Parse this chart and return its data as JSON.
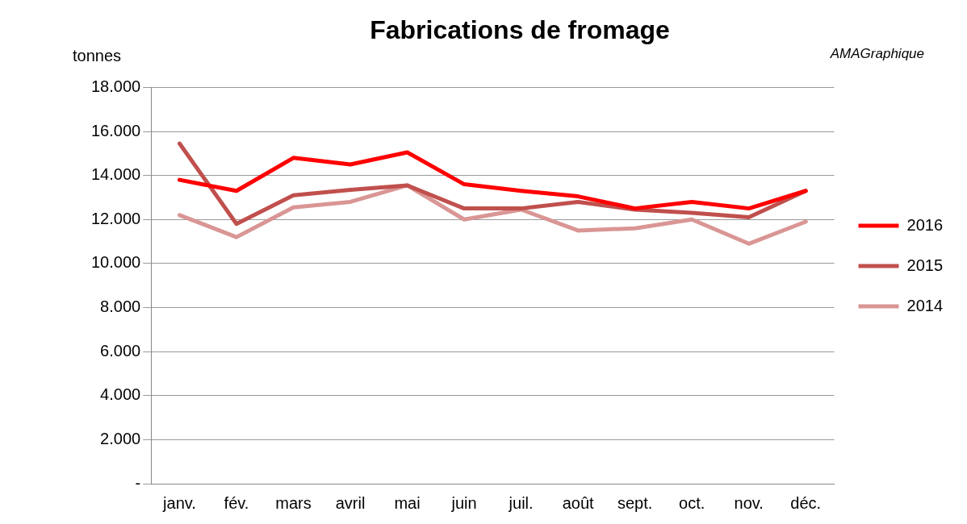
{
  "chart_data": {
    "type": "line",
    "title": "Fabrications de fromage",
    "ylabel": "tonnes",
    "annotations": [
      "AMAGraphique"
    ],
    "categories": [
      "janv.",
      "fév.",
      "mars",
      "avril",
      "mai",
      "juin",
      "juil.",
      "août",
      "sept.",
      "oct.",
      "nov.",
      "déc."
    ],
    "series": [
      {
        "name": "2016",
        "color": "#ff0000",
        "values": [
          13800,
          13300,
          14800,
          14500,
          15050,
          13600,
          13300,
          13050,
          12500,
          12800,
          12500,
          13300
        ]
      },
      {
        "name": "2015",
        "color": "#c0504d",
        "values": [
          15450,
          11800,
          13100,
          13350,
          13550,
          12500,
          12500,
          12800,
          12450,
          12300,
          12100,
          13300
        ]
      },
      {
        "name": "2014",
        "color": "#d99694",
        "values": [
          12200,
          11200,
          12550,
          12800,
          13550,
          12000,
          12450,
          11500,
          11600,
          12000,
          10900,
          11900
        ]
      }
    ],
    "ylim": [
      0,
      18000
    ],
    "yticks": [
      {
        "value": 0,
        "label": "-"
      },
      {
        "value": 2000,
        "label": "2.000"
      },
      {
        "value": 4000,
        "label": "4.000"
      },
      {
        "value": 6000,
        "label": "6.000"
      },
      {
        "value": 8000,
        "label": "8.000"
      },
      {
        "value": 10000,
        "label": "10.000"
      },
      {
        "value": 12000,
        "label": "12.000"
      },
      {
        "value": 14000,
        "label": "14.000"
      },
      {
        "value": 16000,
        "label": "16.000"
      },
      {
        "value": 18000,
        "label": "18.000"
      }
    ],
    "grid": "y",
    "legend": "right",
    "marker": "none",
    "line_style": "solid"
  }
}
